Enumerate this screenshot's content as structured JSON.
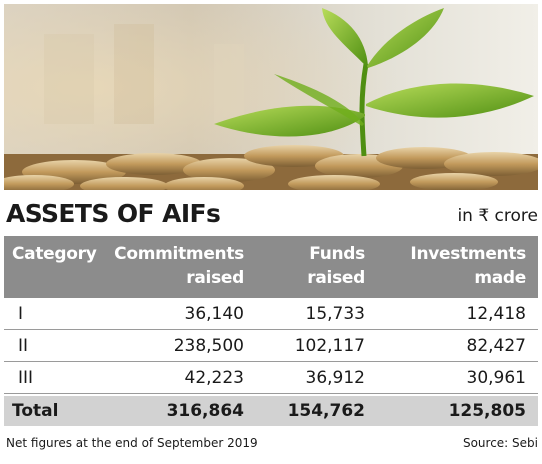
{
  "colors": {
    "header_bg": "#8c8c8c",
    "total_bg": "#d2d2d2",
    "text": "#1a1a1a",
    "plant_green": "#6fae1c",
    "coin_gold": "#c9a46a"
  },
  "heading": {
    "title": "ASSETS OF AIFs",
    "unit": "in ₹ crore"
  },
  "table": {
    "columns": [
      [
        "Category"
      ],
      [
        "Commitments",
        "raised"
      ],
      [
        "Funds",
        "raised"
      ],
      [
        "Investments",
        "made"
      ]
    ],
    "rows": [
      [
        "I",
        "36,140",
        "15,733",
        "12,418"
      ],
      [
        "II",
        "238,500",
        "102,117",
        "82,427"
      ],
      [
        "III",
        "42,223",
        "36,912",
        "30,961"
      ]
    ],
    "total": [
      "Total",
      "316,864",
      "154,762",
      "125,805"
    ]
  },
  "footer": {
    "note": "Net figures at the end of September 2019",
    "source": "Source: Sebi"
  }
}
